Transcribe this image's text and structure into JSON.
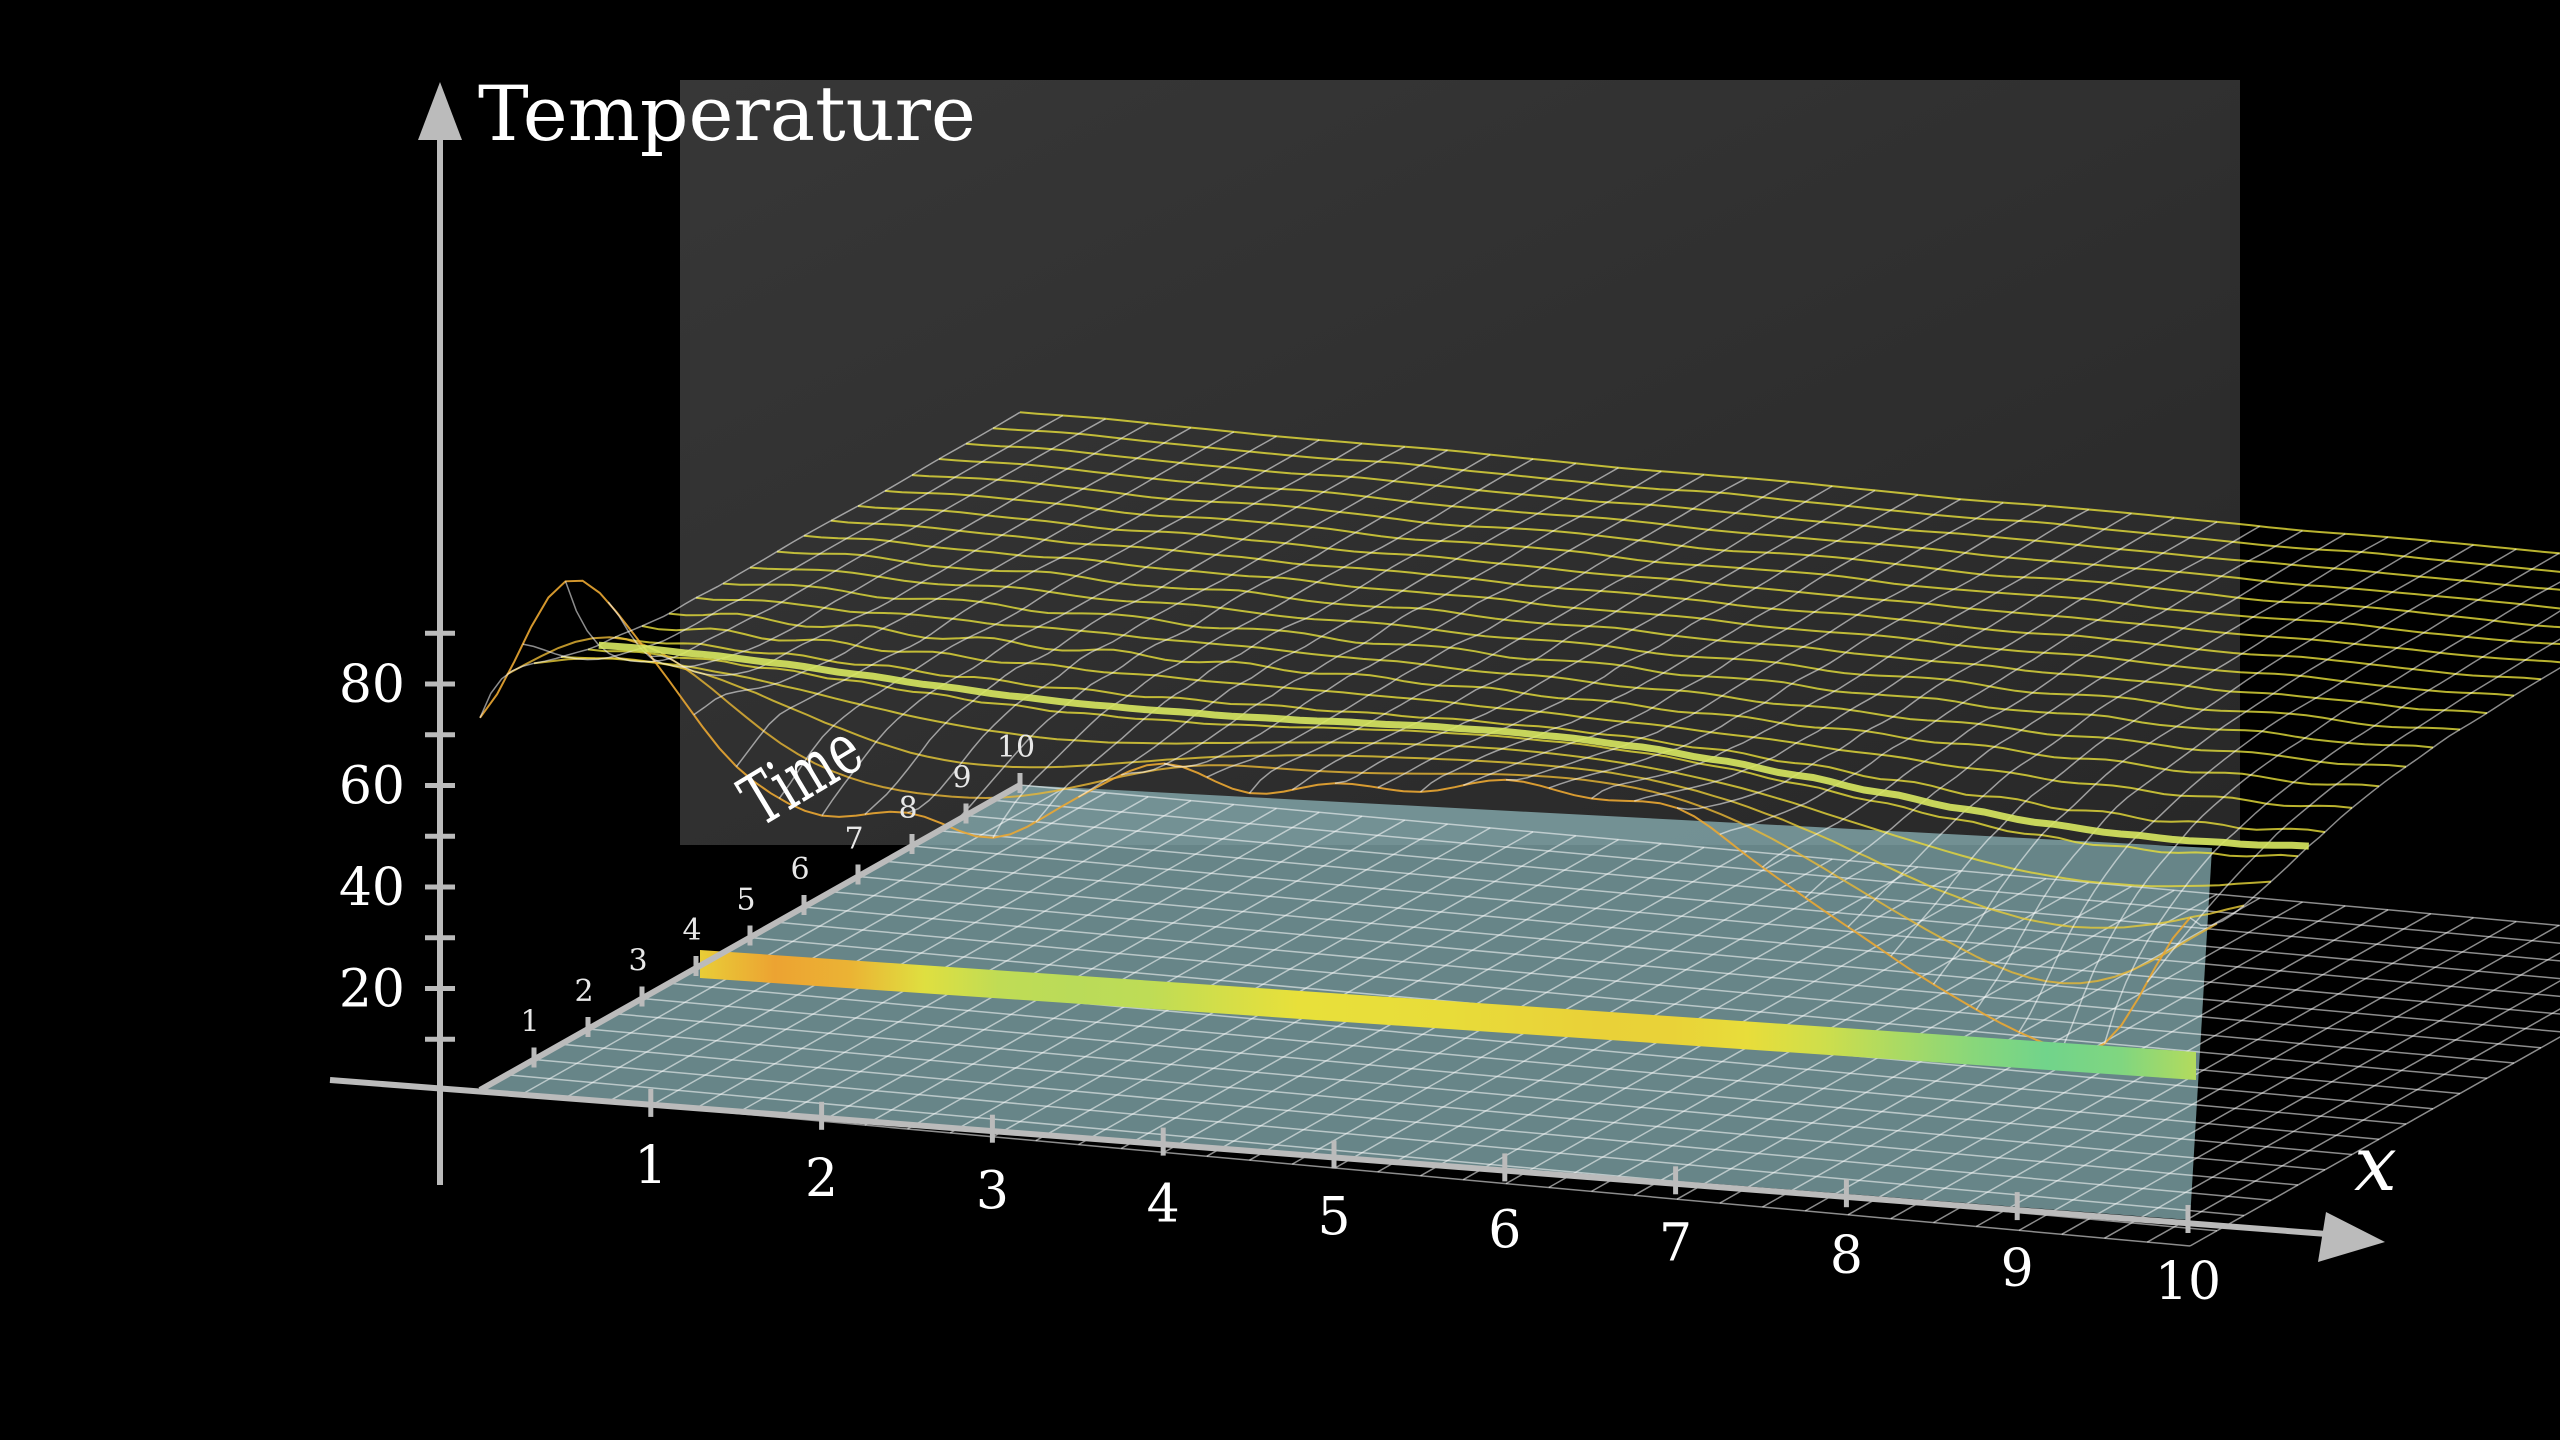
{
  "chart_data": {
    "type": "surface",
    "title": "",
    "axis_labels": {
      "z": "Temperature",
      "y": "Time",
      "x": "x"
    },
    "z_ticks": [
      "20",
      "40",
      "60",
      "80"
    ],
    "x_ticks": [
      "1",
      "2",
      "3",
      "4",
      "5",
      "6",
      "7",
      "8",
      "9",
      "10"
    ],
    "time_ticks": [
      "1",
      "2",
      "3",
      "4",
      "5",
      "6",
      "7",
      "8",
      "9",
      "10"
    ],
    "x_range": [
      0,
      10
    ],
    "z_range": [
      0,
      90
    ],
    "time_range": [
      0,
      10
    ],
    "initial_profile_x": [
      0,
      0.5,
      1,
      1.5,
      2,
      2.5,
      3,
      3.5,
      4,
      4.5,
      5,
      5.5,
      6,
      6.5,
      7,
      7.5,
      8,
      8.5,
      9,
      9.5,
      10
    ],
    "initial_profile_temperature": [
      50,
      90,
      70,
      48,
      40,
      45,
      38,
      50,
      60,
      52,
      58,
      56,
      62,
      58,
      60,
      48,
      38,
      28,
      20,
      15,
      50
    ],
    "equilibrium_temperature": 55,
    "colors": {
      "surface_hot": "#f05a28",
      "surface_mid": "#e8e03a",
      "surface_cool": "#5ad29a",
      "floor": "#8fb9bd",
      "back_panel": "#303030",
      "axis": "#bbbbbb"
    }
  }
}
